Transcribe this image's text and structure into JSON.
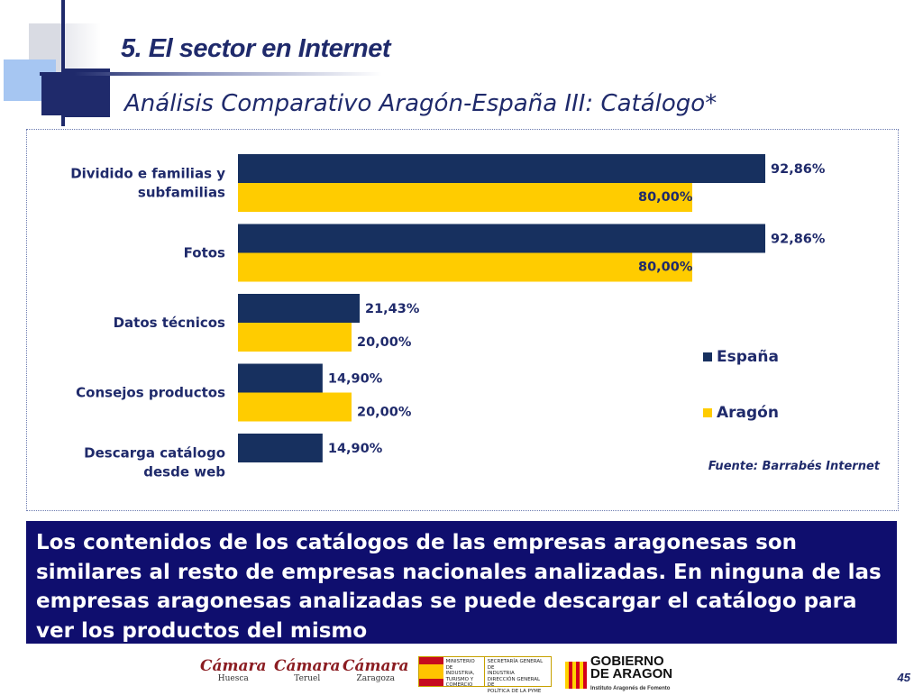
{
  "header": {
    "title": "5. El  sector en Internet",
    "subtitle": "Análisis Comparativo Aragón-España III: Catálogo*"
  },
  "chart_data": {
    "type": "bar",
    "orientation": "horizontal",
    "categories": [
      "Dividido e familias y subfamilias",
      "Fotos",
      "Datos técnicos",
      "Consejos productos",
      "Descarga catálogo desde web"
    ],
    "category_lines": [
      [
        "Dividido e familias y",
        "subfamilias"
      ],
      [
        "Fotos"
      ],
      [
        "Datos técnicos"
      ],
      [
        "Consejos productos"
      ],
      [
        "Descarga catálogo",
        "desde web"
      ]
    ],
    "series": [
      {
        "name": "España",
        "values": [
          92.86,
          92.86,
          21.43,
          14.9,
          14.9
        ],
        "labels": [
          "92,86%",
          "92,86%",
          "21,43%",
          "14,90%",
          "14,90%"
        ],
        "color": "#17305f"
      },
      {
        "name": "Aragón",
        "values": [
          80.0,
          80.0,
          20.0,
          20.0,
          0
        ],
        "labels": [
          "80,00%",
          "80,00%",
          "20,00%",
          "20,00%",
          null
        ],
        "color": "#ffcc00"
      }
    ],
    "xlim": [
      0,
      100
    ],
    "grid": false,
    "legend_position": "right",
    "source": "Fuente: Barrabés Internet"
  },
  "note": {
    "text": "Los contenidos de los catálogos de las empresas aragonesas son similares al resto de empresas nacionales analizadas. En ninguna de las empresas aragonesas analizadas se puede descargar el catálogo para ver los productos del mismo"
  },
  "footer": {
    "logos": [
      {
        "word": "Cámara",
        "city": "Huesca"
      },
      {
        "word": "Cámara",
        "city": "Teruel"
      },
      {
        "word": "Cámara",
        "city": "Zaragoza"
      }
    ],
    "ministerio_lines": [
      "MINISTERIO",
      "DE INDUSTRIA,",
      "TURISMO Y",
      "COMERCIO"
    ],
    "secretaria_lines": [
      "SECRETARÍA GENERAL DE",
      "INDUSTRIA",
      "DIRECCIÓN GENERAL DE",
      "POLÍTICA DE LA PYME"
    ],
    "gobierno_line1": "GOBIERNO",
    "gobierno_line2": "DE ARAGON",
    "gobierno_sub": "Instituto Aragonés de Fomento",
    "page_number": "45"
  }
}
